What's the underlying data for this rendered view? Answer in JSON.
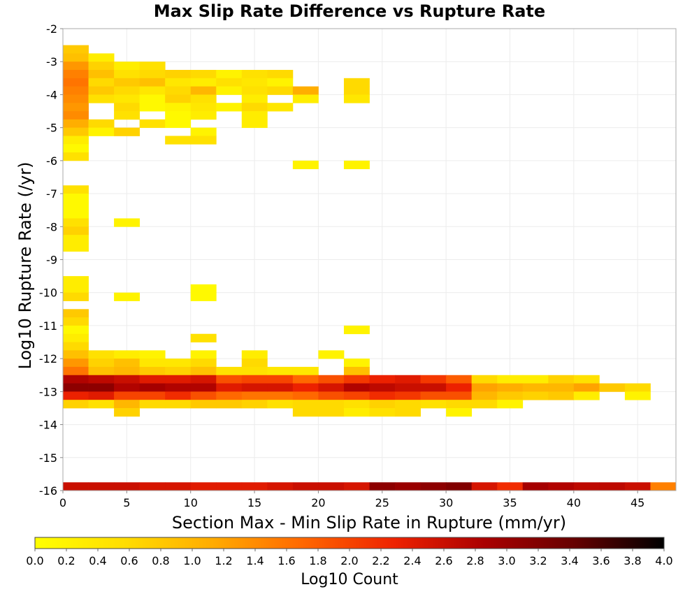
{
  "chart_data": {
    "type": "heatmap",
    "title": "Max Slip Rate Difference vs Rupture Rate",
    "xlabel": "Section Max - Min Slip Rate in Rupture (mm/yr)",
    "ylabel": "Log10 Rupture Rate (/yr)",
    "colorbar_label": "Log10 Count",
    "xlim": [
      0,
      48
    ],
    "ylim": [
      -16,
      -2
    ],
    "x_bin_width": 2,
    "y_bin_height": 0.25,
    "grid": true,
    "legend": "colorbar-bottom",
    "xticks": [
      "0",
      "5",
      "10",
      "15",
      "20",
      "25",
      "30",
      "35",
      "40",
      "45"
    ],
    "yticks": [
      "-2",
      "-3",
      "-4",
      "-5",
      "-6",
      "-7",
      "-8",
      "-9",
      "-10",
      "-11",
      "-12",
      "-13",
      "-14",
      "-15",
      "-16"
    ],
    "colorbar_ticks": [
      "0.0",
      "0.2",
      "0.4",
      "0.6",
      "0.8",
      "1.0",
      "1.2",
      "1.4",
      "1.6",
      "1.8",
      "2.0",
      "2.2",
      "2.4",
      "2.6",
      "2.8",
      "3.0",
      "3.2",
      "3.4",
      "3.6",
      "3.8",
      "4.0"
    ],
    "color_range": [
      0,
      4
    ],
    "colorscale": [
      "#ffff00",
      "#ffdd00",
      "#ffaa00",
      "#ff6600",
      "#ee2200",
      "#aa0000",
      "#660000",
      "#000000"
    ],
    "cells": [
      {
        "x": 0,
        "y": -2.75,
        "v": 0.8
      },
      {
        "x": 0,
        "y": -3,
        "v": 0.9
      },
      {
        "x": 0,
        "y": -3.25,
        "v": 1.3
      },
      {
        "x": 0,
        "y": -3.5,
        "v": 1.5
      },
      {
        "x": 0,
        "y": -3.75,
        "v": 1.6
      },
      {
        "x": 0,
        "y": -4,
        "v": 1.5
      },
      {
        "x": 0,
        "y": -4.25,
        "v": 1.4
      },
      {
        "x": 0,
        "y": -4.5,
        "v": 1.3
      },
      {
        "x": 0,
        "y": -4.75,
        "v": 1.4
      },
      {
        "x": 0,
        "y": -5,
        "v": 1.1
      },
      {
        "x": 0,
        "y": -5.25,
        "v": 0.8
      },
      {
        "x": 0,
        "y": -5.5,
        "v": 0.3
      },
      {
        "x": 0,
        "y": -5.75,
        "v": 0.1
      },
      {
        "x": 0,
        "y": -6,
        "v": 0.5
      },
      {
        "x": 2,
        "y": -3,
        "v": 0.3
      },
      {
        "x": 2,
        "y": -3.25,
        "v": 0.7
      },
      {
        "x": 2,
        "y": -3.5,
        "v": 0.9
      },
      {
        "x": 2,
        "y": -3.75,
        "v": 0.6
      },
      {
        "x": 2,
        "y": -4,
        "v": 0.8
      },
      {
        "x": 2,
        "y": -4.25,
        "v": 0.5
      },
      {
        "x": 2,
        "y": -5,
        "v": 0.6
      },
      {
        "x": 2,
        "y": -5.25,
        "v": 0.2
      },
      {
        "x": 4,
        "y": -3.25,
        "v": 0.3
      },
      {
        "x": 4,
        "y": -3.5,
        "v": 0.5
      },
      {
        "x": 4,
        "y": -3.75,
        "v": 0.8
      },
      {
        "x": 4,
        "y": -4,
        "v": 0.6
      },
      {
        "x": 4,
        "y": -4.25,
        "v": 0.4
      },
      {
        "x": 4,
        "y": -4.5,
        "v": 0.6
      },
      {
        "x": 4,
        "y": -4.75,
        "v": 0.5
      },
      {
        "x": 4,
        "y": -5.25,
        "v": 0.7
      },
      {
        "x": 6,
        "y": -3.25,
        "v": 0.5
      },
      {
        "x": 6,
        "y": -3.5,
        "v": 0.6
      },
      {
        "x": 6,
        "y": -3.75,
        "v": 0.9
      },
      {
        "x": 6,
        "y": -4,
        "v": 0.4
      },
      {
        "x": 6,
        "y": -4.25,
        "v": 0.1
      },
      {
        "x": 6,
        "y": -4.5,
        "v": 0.1
      },
      {
        "x": 6,
        "y": -5,
        "v": 0.5
      },
      {
        "x": 8,
        "y": -3.5,
        "v": 0.7
      },
      {
        "x": 8,
        "y": -3.75,
        "v": 0.4
      },
      {
        "x": 8,
        "y": -4,
        "v": 0.6
      },
      {
        "x": 8,
        "y": -4.25,
        "v": 0.7
      },
      {
        "x": 8,
        "y": -4.5,
        "v": 0.2
      },
      {
        "x": 8,
        "y": -4.75,
        "v": 0.1
      },
      {
        "x": 8,
        "y": -5,
        "v": 0.1
      },
      {
        "x": 8,
        "y": -5.5,
        "v": 0.5
      },
      {
        "x": 10,
        "y": -3.5,
        "v": 0.6
      },
      {
        "x": 10,
        "y": -3.75,
        "v": 0.3
      },
      {
        "x": 10,
        "y": -4,
        "v": 1.0
      },
      {
        "x": 10,
        "y": -4.25,
        "v": 0.5
      },
      {
        "x": 10,
        "y": -4.5,
        "v": 0.4
      },
      {
        "x": 10,
        "y": -4.75,
        "v": 0.3
      },
      {
        "x": 10,
        "y": -5.25,
        "v": 0.2
      },
      {
        "x": 10,
        "y": -5.5,
        "v": 0.5
      },
      {
        "x": 12,
        "y": -3.5,
        "v": 0.2
      },
      {
        "x": 12,
        "y": -3.75,
        "v": 0.5
      },
      {
        "x": 12,
        "y": -4,
        "v": 0.2
      },
      {
        "x": 12,
        "y": -4.5,
        "v": 0.2
      },
      {
        "x": 14,
        "y": -3.5,
        "v": 0.5
      },
      {
        "x": 14,
        "y": -3.75,
        "v": 0.4
      },
      {
        "x": 14,
        "y": -4,
        "v": 0.5
      },
      {
        "x": 14,
        "y": -4.25,
        "v": 0.3
      },
      {
        "x": 14,
        "y": -4.5,
        "v": 0.6
      },
      {
        "x": 14,
        "y": -4.75,
        "v": 0.3
      },
      {
        "x": 16,
        "y": -3.5,
        "v": 0.6
      },
      {
        "x": 16,
        "y": -3.75,
        "v": 0.2
      },
      {
        "x": 16,
        "y": -4,
        "v": 0.6
      },
      {
        "x": 16,
        "y": -4.5,
        "v": 0.4
      },
      {
        "x": 18,
        "y": -4,
        "v": 1.1
      },
      {
        "x": 18,
        "y": -4.25,
        "v": 0.3
      },
      {
        "x": 22,
        "y": -3.75,
        "v": 0.6
      },
      {
        "x": 22,
        "y": -4,
        "v": 0.6
      },
      {
        "x": 22,
        "y": -4.25,
        "v": 0.4
      },
      {
        "x": 14,
        "y": -5,
        "v": 0.3
      },
      {
        "x": 18,
        "y": -6.25,
        "v": 0.2
      },
      {
        "x": 22,
        "y": -6.25,
        "v": 0.2
      },
      {
        "x": 0,
        "y": -7,
        "v": 0.5
      },
      {
        "x": 0,
        "y": -7.25,
        "v": 0.1
      },
      {
        "x": 0,
        "y": -7.5,
        "v": 0.1
      },
      {
        "x": 0,
        "y": -7.75,
        "v": 0.1
      },
      {
        "x": 0,
        "y": -8,
        "v": 0.5
      },
      {
        "x": 0,
        "y": -8.25,
        "v": 0.7
      },
      {
        "x": 0,
        "y": -8.5,
        "v": 0.3
      },
      {
        "x": 0,
        "y": -8.75,
        "v": 0.3
      },
      {
        "x": 4,
        "y": -8,
        "v": 0.2
      },
      {
        "x": 0,
        "y": -9.75,
        "v": 0.3
      },
      {
        "x": 0,
        "y": -10,
        "v": 0.3
      },
      {
        "x": 0,
        "y": -10.25,
        "v": 0.6
      },
      {
        "x": 4,
        "y": -10.25,
        "v": 0.2
      },
      {
        "x": 10,
        "y": -10,
        "v": 0.1
      },
      {
        "x": 10,
        "y": -10.25,
        "v": 0.1
      },
      {
        "x": 0,
        "y": -10.75,
        "v": 0.8
      },
      {
        "x": 0,
        "y": -11,
        "v": 0.6
      },
      {
        "x": 0,
        "y": -11.25,
        "v": 0.1
      },
      {
        "x": 0,
        "y": -11.5,
        "v": 0.3
      },
      {
        "x": 0,
        "y": -11.75,
        "v": 0.6
      },
      {
        "x": 22,
        "y": -11.25,
        "v": 0.2
      },
      {
        "x": 10,
        "y": -11.5,
        "v": 0.5
      },
      {
        "x": 0,
        "y": -12,
        "v": 0.9
      },
      {
        "x": 0,
        "y": -12.25,
        "v": 1.3
      },
      {
        "x": 0,
        "y": -12.5,
        "v": 1.6
      },
      {
        "x": 0,
        "y": -12.75,
        "v": 2.8
      },
      {
        "x": 0,
        "y": -13,
        "v": 3.1
      },
      {
        "x": 0,
        "y": -13.25,
        "v": 2.3
      },
      {
        "x": 0,
        "y": -13.5,
        "v": 0.7
      },
      {
        "x": 2,
        "y": -12,
        "v": 0.5
      },
      {
        "x": 2,
        "y": -12.25,
        "v": 0.7
      },
      {
        "x": 2,
        "y": -12.5,
        "v": 0.9
      },
      {
        "x": 2,
        "y": -12.75,
        "v": 2.7
      },
      {
        "x": 2,
        "y": -13,
        "v": 3.1
      },
      {
        "x": 2,
        "y": -13.25,
        "v": 2.4
      },
      {
        "x": 2,
        "y": -13.5,
        "v": 0.5
      },
      {
        "x": 4,
        "y": -12,
        "v": 0.3
      },
      {
        "x": 4,
        "y": -12.25,
        "v": 0.9
      },
      {
        "x": 4,
        "y": -12.5,
        "v": 1.0
      },
      {
        "x": 4,
        "y": -12.75,
        "v": 2.6
      },
      {
        "x": 4,
        "y": -13,
        "v": 2.8
      },
      {
        "x": 4,
        "y": -13.25,
        "v": 2.0
      },
      {
        "x": 4,
        "y": -13.5,
        "v": 1.0
      },
      {
        "x": 4,
        "y": -13.75,
        "v": 0.7
      },
      {
        "x": 6,
        "y": -12,
        "v": 0.2
      },
      {
        "x": 6,
        "y": -12.25,
        "v": 0.4
      },
      {
        "x": 6,
        "y": -12.5,
        "v": 0.8
      },
      {
        "x": 6,
        "y": -12.75,
        "v": 2.4
      },
      {
        "x": 6,
        "y": -13,
        "v": 2.9
      },
      {
        "x": 6,
        "y": -13.25,
        "v": 2.0
      },
      {
        "x": 6,
        "y": -13.5,
        "v": 0.6
      },
      {
        "x": 8,
        "y": -12.25,
        "v": 0.4
      },
      {
        "x": 8,
        "y": -12.5,
        "v": 0.7
      },
      {
        "x": 8,
        "y": -12.75,
        "v": 2.4
      },
      {
        "x": 8,
        "y": -13,
        "v": 2.8
      },
      {
        "x": 8,
        "y": -13.25,
        "v": 2.2
      },
      {
        "x": 8,
        "y": -13.5,
        "v": 0.6
      },
      {
        "x": 10,
        "y": -12,
        "v": 0.2
      },
      {
        "x": 10,
        "y": -12.25,
        "v": 0.6
      },
      {
        "x": 10,
        "y": -12.5,
        "v": 0.9
      },
      {
        "x": 10,
        "y": -12.75,
        "v": 2.5
      },
      {
        "x": 10,
        "y": -13,
        "v": 2.8
      },
      {
        "x": 10,
        "y": -13.25,
        "v": 1.9
      },
      {
        "x": 10,
        "y": -13.5,
        "v": 0.8
      },
      {
        "x": 12,
        "y": -12.5,
        "v": 0.5
      },
      {
        "x": 12,
        "y": -12.75,
        "v": 1.9
      },
      {
        "x": 12,
        "y": -13,
        "v": 2.4
      },
      {
        "x": 12,
        "y": -13.25,
        "v": 1.7
      },
      {
        "x": 12,
        "y": -13.5,
        "v": 0.8
      },
      {
        "x": 14,
        "y": -12,
        "v": 0.3
      },
      {
        "x": 14,
        "y": -12.25,
        "v": 0.6
      },
      {
        "x": 14,
        "y": -12.5,
        "v": 0.5
      },
      {
        "x": 14,
        "y": -12.75,
        "v": 2.0
      },
      {
        "x": 14,
        "y": -13,
        "v": 2.5
      },
      {
        "x": 14,
        "y": -13.25,
        "v": 1.6
      },
      {
        "x": 14,
        "y": -13.5,
        "v": 0.7
      },
      {
        "x": 16,
        "y": -12.5,
        "v": 0.4
      },
      {
        "x": 16,
        "y": -12.75,
        "v": 2.0
      },
      {
        "x": 16,
        "y": -13,
        "v": 2.5
      },
      {
        "x": 16,
        "y": -13.25,
        "v": 1.6
      },
      {
        "x": 16,
        "y": -13.5,
        "v": 0.5
      },
      {
        "x": 18,
        "y": -12.5,
        "v": 0.4
      },
      {
        "x": 18,
        "y": -12.75,
        "v": 1.7
      },
      {
        "x": 18,
        "y": -13,
        "v": 2.3
      },
      {
        "x": 18,
        "y": -13.25,
        "v": 1.7
      },
      {
        "x": 18,
        "y": -13.5,
        "v": 0.6
      },
      {
        "x": 18,
        "y": -13.75,
        "v": 0.6
      },
      {
        "x": 20,
        "y": -12,
        "v": 0.2
      },
      {
        "x": 20,
        "y": -12.75,
        "v": 1.9
      },
      {
        "x": 20,
        "y": -13,
        "v": 2.5
      },
      {
        "x": 20,
        "y": -13.25,
        "v": 1.9
      },
      {
        "x": 20,
        "y": -13.5,
        "v": 0.6
      },
      {
        "x": 20,
        "y": -13.75,
        "v": 0.6
      },
      {
        "x": 22,
        "y": -12.25,
        "v": 0.2
      },
      {
        "x": 22,
        "y": -12.5,
        "v": 0.9
      },
      {
        "x": 22,
        "y": -12.75,
        "v": 2.1
      },
      {
        "x": 22,
        "y": -13,
        "v": 2.8
      },
      {
        "x": 22,
        "y": -13.25,
        "v": 2.0
      },
      {
        "x": 22,
        "y": -13.5,
        "v": 0.5
      },
      {
        "x": 22,
        "y": -13.75,
        "v": 0.3
      },
      {
        "x": 24,
        "y": -12.75,
        "v": 2.3
      },
      {
        "x": 24,
        "y": -13,
        "v": 2.7
      },
      {
        "x": 24,
        "y": -13.25,
        "v": 2.2
      },
      {
        "x": 24,
        "y": -13.5,
        "v": 0.7
      },
      {
        "x": 24,
        "y": -13.75,
        "v": 0.5
      },
      {
        "x": 26,
        "y": -12.75,
        "v": 2.4
      },
      {
        "x": 26,
        "y": -13,
        "v": 2.6
      },
      {
        "x": 26,
        "y": -13.25,
        "v": 2.1
      },
      {
        "x": 26,
        "y": -13.5,
        "v": 0.6
      },
      {
        "x": 26,
        "y": -13.75,
        "v": 0.6
      },
      {
        "x": 28,
        "y": -12.75,
        "v": 2.1
      },
      {
        "x": 28,
        "y": -13,
        "v": 2.6
      },
      {
        "x": 28,
        "y": -13.25,
        "v": 1.9
      },
      {
        "x": 28,
        "y": -13.5,
        "v": 0.5
      },
      {
        "x": 30,
        "y": -12.75,
        "v": 1.8
      },
      {
        "x": 30,
        "y": -13,
        "v": 2.3
      },
      {
        "x": 30,
        "y": -13.25,
        "v": 1.9
      },
      {
        "x": 30,
        "y": -13.5,
        "v": 0.6
      },
      {
        "x": 30,
        "y": -13.75,
        "v": 0.2
      },
      {
        "x": 32,
        "y": -12.75,
        "v": 0.6
      },
      {
        "x": 32,
        "y": -13,
        "v": 1.2
      },
      {
        "x": 32,
        "y": -13.25,
        "v": 1.0
      },
      {
        "x": 32,
        "y": -13.5,
        "v": 0.6
      },
      {
        "x": 34,
        "y": -12.75,
        "v": 0.3
      },
      {
        "x": 34,
        "y": -13,
        "v": 1.1
      },
      {
        "x": 34,
        "y": -13.25,
        "v": 0.8
      },
      {
        "x": 34,
        "y": -13.5,
        "v": 0.2
      },
      {
        "x": 36,
        "y": -12.75,
        "v": 0.3
      },
      {
        "x": 36,
        "y": -13,
        "v": 1.0
      },
      {
        "x": 36,
        "y": -13.25,
        "v": 0.7
      },
      {
        "x": 38,
        "y": -12.75,
        "v": 0.7
      },
      {
        "x": 38,
        "y": -13,
        "v": 1.0
      },
      {
        "x": 38,
        "y": -13.25,
        "v": 0.8
      },
      {
        "x": 40,
        "y": -12.75,
        "v": 0.5
      },
      {
        "x": 40,
        "y": -13,
        "v": 1.2
      },
      {
        "x": 40,
        "y": -13.25,
        "v": 0.3
      },
      {
        "x": 42,
        "y": -13,
        "v": 0.8
      },
      {
        "x": 44,
        "y": -13,
        "v": 0.6
      },
      {
        "x": 44,
        "y": -13.25,
        "v": 0.2
      },
      {
        "x": 0,
        "y": -16,
        "v": 2.6
      },
      {
        "x": 2,
        "y": -16,
        "v": 2.6
      },
      {
        "x": 4,
        "y": -16,
        "v": 2.6
      },
      {
        "x": 6,
        "y": -16,
        "v": 2.5
      },
      {
        "x": 8,
        "y": -16,
        "v": 2.5
      },
      {
        "x": 10,
        "y": -16,
        "v": 2.4
      },
      {
        "x": 12,
        "y": -16,
        "v": 2.4
      },
      {
        "x": 14,
        "y": -16,
        "v": 2.4
      },
      {
        "x": 16,
        "y": -16,
        "v": 2.5
      },
      {
        "x": 18,
        "y": -16,
        "v": 2.6
      },
      {
        "x": 20,
        "y": -16,
        "v": 2.6
      },
      {
        "x": 22,
        "y": -16,
        "v": 2.5
      },
      {
        "x": 24,
        "y": -16,
        "v": 3.1
      },
      {
        "x": 26,
        "y": -16,
        "v": 3.0
      },
      {
        "x": 28,
        "y": -16,
        "v": 3.1
      },
      {
        "x": 30,
        "y": -16,
        "v": 3.2
      },
      {
        "x": 32,
        "y": -16,
        "v": 2.5
      },
      {
        "x": 34,
        "y": -16,
        "v": 2.2
      },
      {
        "x": 36,
        "y": -16,
        "v": 2.9
      },
      {
        "x": 38,
        "y": -16,
        "v": 2.8
      },
      {
        "x": 40,
        "y": -16,
        "v": 2.7
      },
      {
        "x": 42,
        "y": -16,
        "v": 2.7
      },
      {
        "x": 44,
        "y": -16,
        "v": 2.6
      },
      {
        "x": 46,
        "y": -16,
        "v": 1.5
      }
    ]
  }
}
